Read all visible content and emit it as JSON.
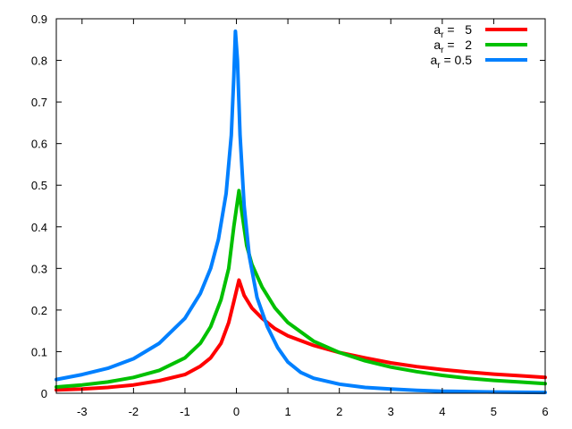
{
  "chart_data": {
    "type": "line",
    "title": "",
    "xlabel": "",
    "ylabel": "",
    "xlim": [
      -3.5,
      6
    ],
    "ylim": [
      0,
      0.9
    ],
    "x_ticks": [
      -3,
      -2,
      -1,
      0,
      1,
      2,
      3,
      4,
      5,
      6
    ],
    "x_tick_labels": [
      "-3",
      "-2",
      "-1",
      "0",
      "1",
      "2",
      "3",
      "4",
      "5",
      "6"
    ],
    "y_ticks": [
      0,
      0.1,
      0.2,
      0.3,
      0.4,
      0.5,
      0.6,
      0.7,
      0.8,
      0.9
    ],
    "y_tick_labels": [
      "0",
      "0.1",
      "0.2",
      "0.3",
      "0.4",
      "0.5",
      "0.6",
      "0.7",
      "0.8",
      "0.9"
    ],
    "grid": false,
    "legend_position": "top-right",
    "series": [
      {
        "legend_base": "a",
        "legend_sub": "r",
        "legend_value": " =   5",
        "color": "#ff0000",
        "points": [
          [
            -3.5,
            0.008
          ],
          [
            -3,
            0.01
          ],
          [
            -2.5,
            0.014
          ],
          [
            -2,
            0.02
          ],
          [
            -1.5,
            0.03
          ],
          [
            -1,
            0.045
          ],
          [
            -0.7,
            0.065
          ],
          [
            -0.5,
            0.085
          ],
          [
            -0.3,
            0.12
          ],
          [
            -0.15,
            0.17
          ],
          [
            -0.05,
            0.22
          ],
          [
            0.05,
            0.272
          ],
          [
            0.15,
            0.235
          ],
          [
            0.3,
            0.205
          ],
          [
            0.5,
            0.18
          ],
          [
            0.75,
            0.155
          ],
          [
            1,
            0.138
          ],
          [
            1.5,
            0.115
          ],
          [
            2,
            0.098
          ],
          [
            2.5,
            0.085
          ],
          [
            3,
            0.073
          ],
          [
            3.5,
            0.064
          ],
          [
            4,
            0.057
          ],
          [
            4.5,
            0.051
          ],
          [
            5,
            0.046
          ],
          [
            5.5,
            0.042
          ],
          [
            6,
            0.038
          ]
        ]
      },
      {
        "legend_base": "a",
        "legend_sub": "r",
        "legend_value": " =   2",
        "color": "#00c000",
        "points": [
          [
            -3.5,
            0.015
          ],
          [
            -3,
            0.02
          ],
          [
            -2.5,
            0.027
          ],
          [
            -2,
            0.038
          ],
          [
            -1.5,
            0.055
          ],
          [
            -1,
            0.085
          ],
          [
            -0.7,
            0.12
          ],
          [
            -0.5,
            0.16
          ],
          [
            -0.3,
            0.225
          ],
          [
            -0.15,
            0.3
          ],
          [
            -0.05,
            0.4
          ],
          [
            0.05,
            0.487
          ],
          [
            0.1,
            0.44
          ],
          [
            0.2,
            0.355
          ],
          [
            0.3,
            0.31
          ],
          [
            0.5,
            0.255
          ],
          [
            0.75,
            0.205
          ],
          [
            1,
            0.17
          ],
          [
            1.5,
            0.125
          ],
          [
            2,
            0.098
          ],
          [
            2.5,
            0.078
          ],
          [
            3,
            0.063
          ],
          [
            3.5,
            0.052
          ],
          [
            4,
            0.043
          ],
          [
            4.5,
            0.036
          ],
          [
            5,
            0.031
          ],
          [
            5.5,
            0.027
          ],
          [
            6,
            0.023
          ]
        ]
      },
      {
        "legend_base": "a",
        "legend_sub": "r",
        "legend_value": " = 0.5",
        "color": "#0080ff",
        "points": [
          [
            -3.5,
            0.033
          ],
          [
            -3,
            0.045
          ],
          [
            -2.5,
            0.06
          ],
          [
            -2,
            0.083
          ],
          [
            -1.5,
            0.12
          ],
          [
            -1,
            0.18
          ],
          [
            -0.7,
            0.24
          ],
          [
            -0.5,
            0.3
          ],
          [
            -0.35,
            0.37
          ],
          [
            -0.2,
            0.48
          ],
          [
            -0.1,
            0.62
          ],
          [
            -0.05,
            0.76
          ],
          [
            -0.02,
            0.87
          ],
          [
            0.02,
            0.8
          ],
          [
            0.07,
            0.62
          ],
          [
            0.15,
            0.45
          ],
          [
            0.25,
            0.33
          ],
          [
            0.4,
            0.23
          ],
          [
            0.6,
            0.16
          ],
          [
            0.8,
            0.11
          ],
          [
            1,
            0.075
          ],
          [
            1.25,
            0.05
          ],
          [
            1.5,
            0.036
          ],
          [
            2,
            0.022
          ],
          [
            2.5,
            0.014
          ],
          [
            3,
            0.01
          ],
          [
            3.5,
            0.007
          ],
          [
            4,
            0.005
          ],
          [
            5,
            0.003
          ],
          [
            6,
            0.002
          ]
        ]
      }
    ]
  }
}
